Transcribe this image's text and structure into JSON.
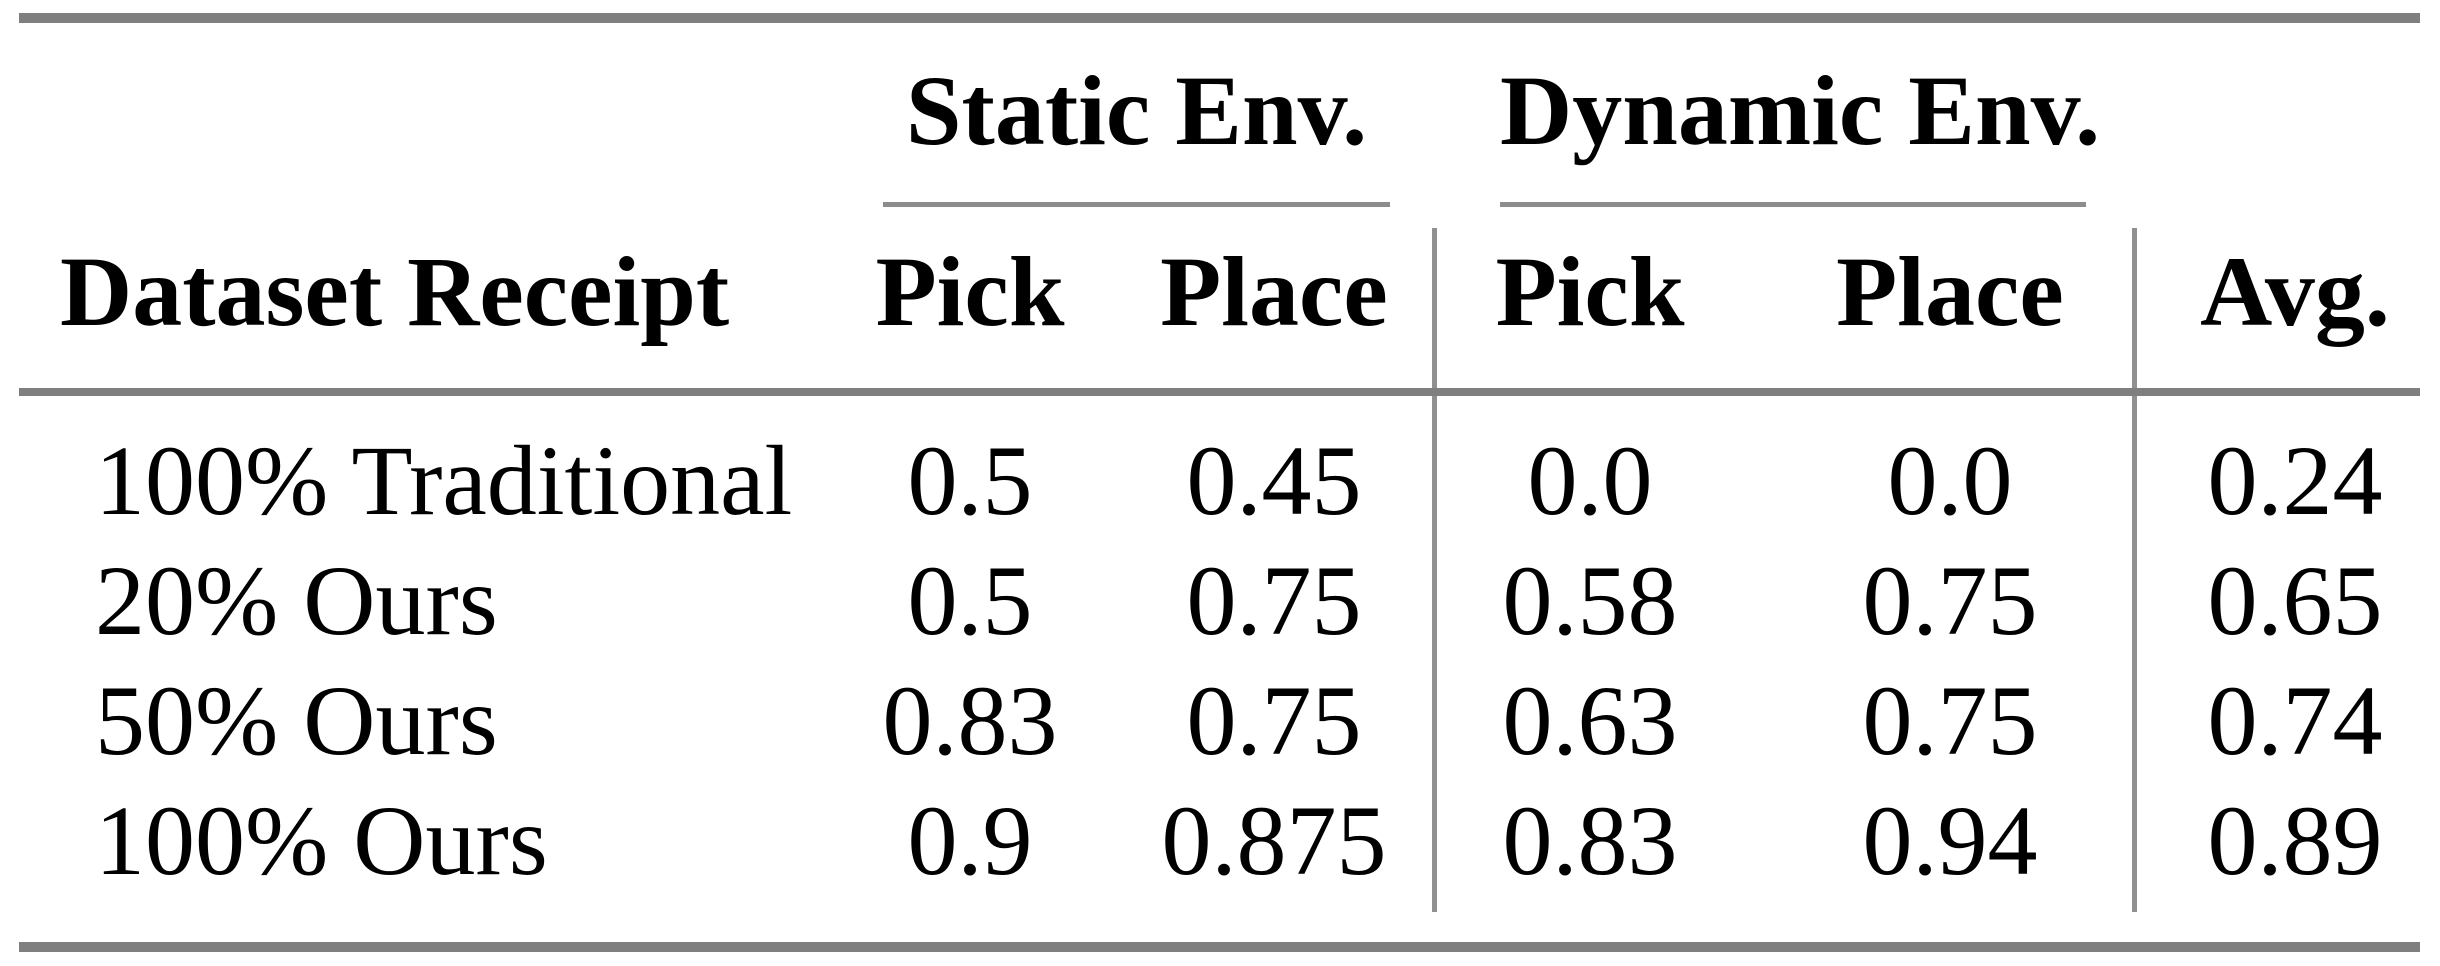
{
  "table": {
    "group_headers": {
      "static": "Static Env.",
      "dynamic": "Dynamic Env."
    },
    "column_headers": {
      "row_header": "Dataset Receipt",
      "static_pick": "Pick",
      "static_place": "Place",
      "dynamic_pick": "Pick",
      "dynamic_place": "Place",
      "avg": "Avg."
    },
    "rows": [
      {
        "label": "100% Traditional",
        "values": [
          "0.5",
          "0.45",
          "0.0",
          "0.0",
          "0.24"
        ]
      },
      {
        "label": "20% Ours",
        "values": [
          "0.5",
          "0.75",
          "0.58",
          "0.75",
          "0.65"
        ]
      },
      {
        "label": "50% Ours",
        "values": [
          "0.83",
          "0.75",
          "0.63",
          "0.75",
          "0.74"
        ]
      },
      {
        "label": "100% Ours",
        "values": [
          "0.9",
          "0.875",
          "0.83",
          "0.94",
          "0.89"
        ]
      }
    ],
    "colors": {
      "thick_rule": "#7f7f7f",
      "thin_rule": "#8c8c8c",
      "vertical_rule": "#909090",
      "text": "#000000",
      "background": "#ffffff"
    }
  }
}
